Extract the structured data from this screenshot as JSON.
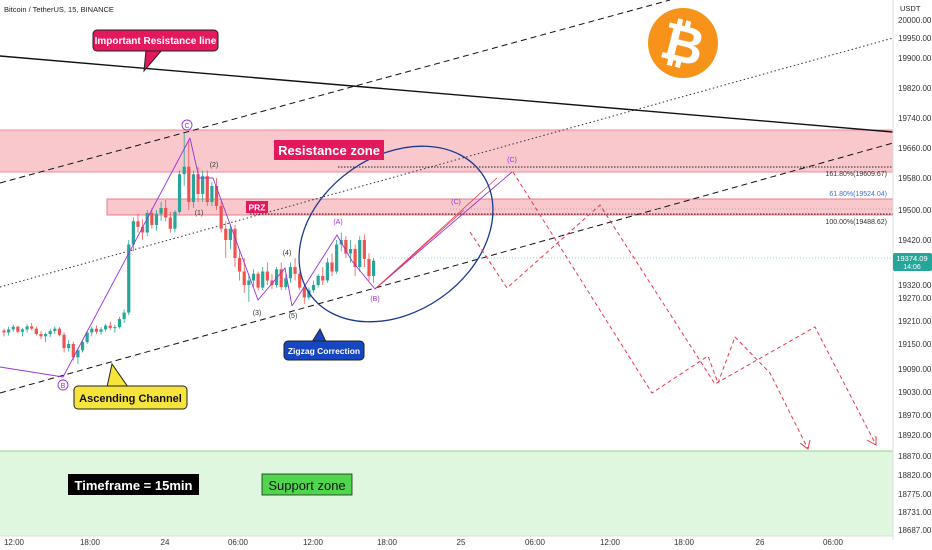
{
  "header": {
    "symbol": "Bitcoin / TetherUS, 15, BINANCE",
    "currency": "USDT"
  },
  "labels": {
    "resistance_line": "Important Resistance line",
    "resistance_zone": "Resistance zone",
    "prz": "PRZ",
    "ascending_channel": "Ascending Channel",
    "zigzag": "Zigzag Correction",
    "timeframe": "Timeframe = 15min",
    "support_zone": "Support zone"
  },
  "fib_levels": [
    {
      "label": "161.80%(19609.67)",
      "price": 19609.67,
      "color": "#333333"
    },
    {
      "label": "61.80%(19524.04)",
      "price": 19524.04,
      "color": "#3b6fd8"
    },
    {
      "label": "100.00%(19488.62)",
      "price": 19488.62,
      "color": "#333333"
    }
  ],
  "current_price": {
    "value": "19374.09",
    "countdown": "14:06",
    "color": "#26a69a"
  },
  "wave_labels": [
    "C",
    "B",
    "(1)",
    "(2)",
    "(3)",
    "(4)",
    "(5)",
    "(A)",
    "(B)",
    "(C)",
    "(C)"
  ],
  "colors": {
    "up": "#26a69a",
    "down": "#ef5350",
    "resistance_zone": "#f8c8cc",
    "support_zone": "#dff7de",
    "pattern": "#9b30d9",
    "projection": "#e53950",
    "ellipse": "#1a3a8f",
    "bitcoin": "#f7931a"
  },
  "chart_data": {
    "type": "candlestick",
    "title": "Bitcoin / TetherUS, 15, BINANCE",
    "y_axis": {
      "ticks": [
        20000,
        19950,
        19900,
        19820,
        19740,
        19660,
        19580,
        19500,
        19420,
        19320,
        19270,
        19210,
        19150,
        19090,
        19030,
        18970,
        18920,
        18870,
        18820,
        18775,
        18731,
        18687
      ],
      "tick_labels": [
        "20000.00",
        "19950.00",
        "19900.00",
        "19820.00",
        "19740.00",
        "19660.00",
        "19580.00",
        "19500.00",
        "19420.00",
        "19320.00",
        "19270.00",
        "19210.00",
        "19150.00",
        "19090.00",
        "19030.00",
        "18970.00",
        "18920.00",
        "18870.00",
        "18820.00",
        "18775.00",
        "18731.00",
        "18687.00"
      ]
    },
    "x_axis": {
      "tick_labels": [
        "12:00",
        "18:00",
        "24",
        "06:00",
        "12:00",
        "18:00",
        "25",
        "06:00",
        "12:00",
        "18:00",
        "26",
        "06:00"
      ]
    },
    "zones": {
      "resistance": [
        19580,
        19700
      ],
      "prz": [
        19488,
        19524
      ],
      "support": [
        18687,
        18880
      ]
    },
    "candles": [
      [
        19185,
        19190,
        19170,
        19180
      ],
      [
        19180,
        19195,
        19172,
        19188
      ],
      [
        19188,
        19200,
        19182,
        19195
      ],
      [
        19195,
        19198,
        19178,
        19182
      ],
      [
        19182,
        19192,
        19170,
        19188
      ],
      [
        19188,
        19202,
        19180,
        19196
      ],
      [
        19196,
        19205,
        19186,
        19190
      ],
      [
        19190,
        19196,
        19172,
        19176
      ],
      [
        19176,
        19184,
        19162,
        19170
      ],
      [
        19170,
        19180,
        19155,
        19176
      ],
      [
        19176,
        19190,
        19168,
        19184
      ],
      [
        19184,
        19196,
        19176,
        19190
      ],
      [
        19190,
        19194,
        19170,
        19174
      ],
      [
        19174,
        19180,
        19130,
        19140
      ],
      [
        19140,
        19160,
        19132,
        19150
      ],
      [
        19150,
        19156,
        19110,
        19118
      ],
      [
        19118,
        19140,
        19102,
        19135
      ],
      [
        19135,
        19160,
        19130,
        19155
      ],
      [
        19155,
        19185,
        19150,
        19180
      ],
      [
        19180,
        19196,
        19170,
        19190
      ],
      [
        19190,
        19198,
        19176,
        19182
      ],
      [
        19182,
        19194,
        19174,
        19188
      ],
      [
        19188,
        19202,
        19182,
        19198
      ],
      [
        19198,
        19208,
        19186,
        19192
      ],
      [
        19192,
        19200,
        19180,
        19194
      ],
      [
        19194,
        19220,
        19190,
        19215
      ],
      [
        19215,
        19240,
        19205,
        19232
      ],
      [
        19232,
        19420,
        19225,
        19410
      ],
      [
        19410,
        19480,
        19395,
        19470
      ],
      [
        19470,
        19490,
        19440,
        19455
      ],
      [
        19455,
        19475,
        19420,
        19440
      ],
      [
        19440,
        19500,
        19430,
        19492
      ],
      [
        19492,
        19505,
        19450,
        19460
      ],
      [
        19460,
        19500,
        19445,
        19490
      ],
      [
        19490,
        19520,
        19470,
        19505
      ],
      [
        19505,
        19525,
        19470,
        19480
      ],
      [
        19480,
        19495,
        19440,
        19450
      ],
      [
        19450,
        19500,
        19440,
        19495
      ],
      [
        19495,
        19600,
        19490,
        19590
      ],
      [
        19590,
        19700,
        19560,
        19610
      ],
      [
        19610,
        19680,
        19500,
        19520
      ],
      [
        19520,
        19600,
        19505,
        19590
      ],
      [
        19590,
        19610,
        19520,
        19540
      ],
      [
        19540,
        19600,
        19520,
        19585
      ],
      [
        19585,
        19600,
        19510,
        19520
      ],
      [
        19520,
        19570,
        19510,
        19560
      ],
      [
        19560,
        19580,
        19500,
        19510
      ],
      [
        19510,
        19520,
        19440,
        19450
      ],
      [
        19450,
        19470,
        19380,
        19420
      ],
      [
        19420,
        19460,
        19400,
        19450
      ],
      [
        19450,
        19460,
        19360,
        19380
      ],
      [
        19380,
        19400,
        19330,
        19350
      ],
      [
        19350,
        19380,
        19290,
        19320
      ],
      [
        19320,
        19345,
        19260,
        19330
      ],
      [
        19330,
        19355,
        19310,
        19345
      ],
      [
        19345,
        19350,
        19300,
        19310
      ],
      [
        19310,
        19360,
        19300,
        19350
      ],
      [
        19350,
        19370,
        19320,
        19330
      ],
      [
        19330,
        19345,
        19305,
        19320
      ],
      [
        19320,
        19360,
        19310,
        19355
      ],
      [
        19355,
        19370,
        19300,
        19312
      ],
      [
        19312,
        19345,
        19300,
        19335
      ],
      [
        19335,
        19370,
        19325,
        19360
      ],
      [
        19360,
        19380,
        19330,
        19345
      ],
      [
        19345,
        19350,
        19300,
        19310
      ],
      [
        19310,
        19320,
        19255,
        19272
      ],
      [
        19272,
        19310,
        19265,
        19300
      ],
      [
        19300,
        19330,
        19290,
        19320
      ],
      [
        19320,
        19345,
        19310,
        19340
      ],
      [
        19340,
        19360,
        19320,
        19330
      ],
      [
        19330,
        19380,
        19325,
        19370
      ],
      [
        19370,
        19390,
        19340,
        19350
      ],
      [
        19350,
        19420,
        19345,
        19410
      ],
      [
        19410,
        19440,
        19395,
        19420
      ],
      [
        19420,
        19430,
        19380,
        19390
      ],
      [
        19390,
        19420,
        19370,
        19400
      ],
      [
        19400,
        19410,
        19340,
        19360
      ],
      [
        19360,
        19430,
        19350,
        19420
      ],
      [
        19420,
        19435,
        19360,
        19378
      ],
      [
        19378,
        19390,
        19330,
        19340
      ],
      [
        19340,
        19380,
        19325,
        19374
      ]
    ]
  }
}
